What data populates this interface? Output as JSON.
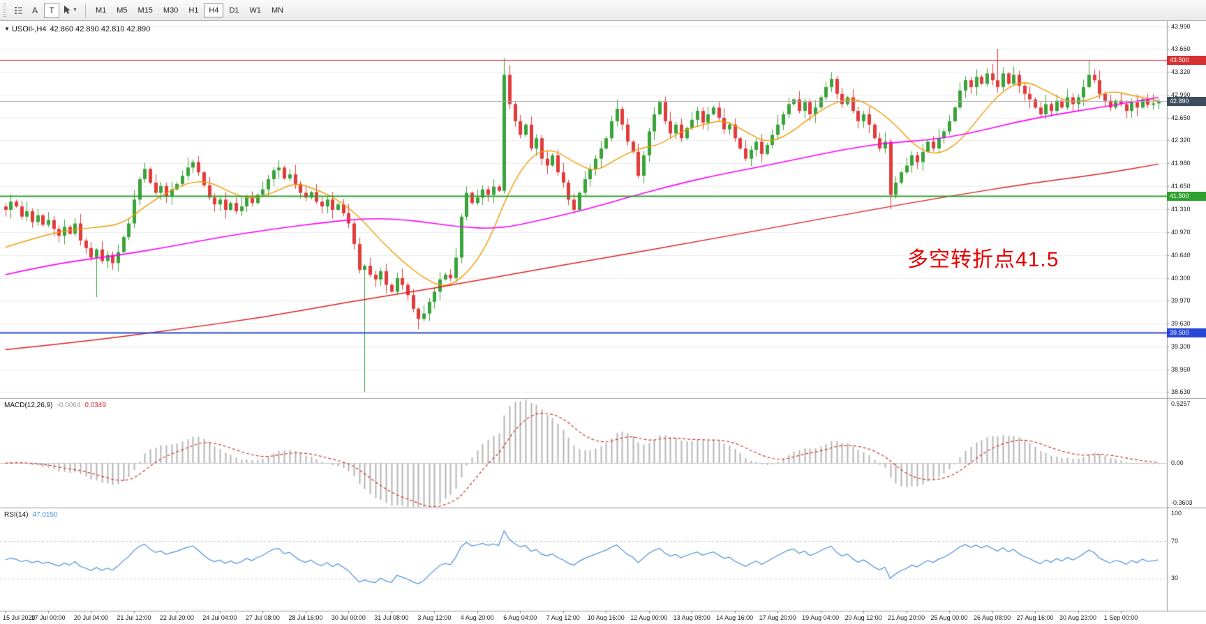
{
  "ui": {
    "toolbar": {
      "a_label": "A",
      "t_label": "T",
      "timeframes": [
        "M1",
        "M5",
        "M15",
        "M30",
        "H1",
        "H4",
        "D1",
        "W1",
        "MN"
      ],
      "active_timeframe": "H4"
    },
    "chart_title": {
      "symbol": "USOil-,H4",
      "ohlc": "42.860 42.890 42.810 42.890"
    }
  },
  "chart_data": {
    "type": "candlestick",
    "symbol": "USOil",
    "timeframe": "H4",
    "ohlc_current": {
      "open": 42.86,
      "high": 42.89,
      "low": 42.81,
      "close": 42.89
    },
    "ylim": [
      38.55,
      44.07
    ],
    "up_color": "#3aa33a",
    "down_color": "#e23b3b",
    "grid_color": "#ececec",
    "price_gridlines": [
      "43.990",
      "43.660",
      "43.320",
      "42.990",
      "42.650",
      "42.320",
      "41.980",
      "41.650",
      "41.310",
      "40.970",
      "40.640",
      "40.300",
      "39.970",
      "39.630",
      "39.300",
      "38.960",
      "38.630"
    ],
    "levels": [
      {
        "value": 43.5,
        "label": "43.500",
        "line_color": "#d83030",
        "tag_bg": "#d83030",
        "line_width": 1
      },
      {
        "value": 42.89,
        "label": "42.890",
        "line_color": "#a8a8a8",
        "tag_bg": "#3e4e5e",
        "line_width": 1
      },
      {
        "value": 41.5,
        "label": "41.500",
        "line_color": "#2fa12f",
        "tag_bg": "#2fa12f",
        "line_width": 2
      },
      {
        "value": 39.5,
        "label": "39.500",
        "line_color": "#2848d8",
        "tag_bg": "#2848d8",
        "line_width": 2
      }
    ],
    "annotation": {
      "text": "多空转折点41.5",
      "color": "#e60000"
    },
    "first_open": 41.35,
    "closes": [
      41.3,
      41.42,
      41.35,
      41.2,
      41.28,
      41.12,
      41.22,
      41.08,
      41.15,
      41.02,
      40.92,
      41.05,
      40.95,
      41.1,
      40.85,
      40.74,
      40.6,
      40.72,
      40.55,
      40.64,
      40.52,
      40.68,
      40.9,
      41.1,
      41.45,
      41.75,
      41.9,
      41.7,
      41.55,
      41.65,
      41.5,
      41.6,
      41.68,
      41.8,
      41.92,
      42.0,
      41.85,
      41.66,
      41.48,
      41.38,
      41.45,
      41.3,
      41.4,
      41.28,
      41.35,
      41.48,
      41.4,
      41.52,
      41.6,
      41.75,
      41.88,
      41.92,
      41.76,
      41.82,
      41.68,
      41.55,
      41.48,
      41.56,
      41.42,
      41.35,
      41.45,
      41.3,
      41.38,
      41.25,
      41.1,
      40.8,
      40.42,
      40.48,
      40.35,
      40.28,
      40.4,
      40.2,
      40.1,
      40.3,
      40.2,
      40.05,
      39.85,
      39.7,
      39.78,
      39.95,
      40.1,
      40.28,
      40.35,
      40.3,
      40.6,
      41.2,
      41.55,
      41.4,
      41.48,
      41.6,
      41.52,
      41.64,
      41.58,
      43.28,
      42.85,
      42.6,
      42.4,
      42.55,
      42.2,
      42.35,
      42.05,
      41.95,
      42.1,
      41.85,
      41.7,
      41.45,
      41.3,
      41.55,
      41.75,
      41.9,
      42.05,
      42.2,
      42.35,
      42.6,
      42.78,
      42.55,
      42.3,
      42.15,
      41.8,
      42.1,
      42.45,
      42.7,
      42.88,
      42.6,
      42.42,
      42.55,
      42.35,
      42.5,
      42.62,
      42.75,
      42.58,
      42.7,
      42.8,
      42.65,
      42.48,
      42.55,
      42.35,
      42.2,
      42.05,
      42.18,
      42.3,
      42.12,
      42.25,
      42.4,
      42.55,
      42.7,
      42.85,
      42.92,
      42.75,
      42.88,
      42.7,
      42.8,
      42.95,
      43.1,
      43.22,
      43.0,
      42.85,
      42.95,
      42.75,
      42.6,
      42.7,
      42.55,
      42.35,
      42.2,
      42.3,
      41.52,
      41.7,
      41.85,
      41.95,
      42.1,
      42.0,
      42.15,
      42.3,
      42.2,
      42.35,
      42.45,
      42.6,
      42.8,
      43.05,
      43.2,
      43.1,
      43.25,
      43.15,
      43.3,
      43.2,
      43.1,
      43.3,
      43.15,
      43.28,
      43.12,
      43.0,
      42.92,
      42.8,
      42.7,
      42.85,
      42.75,
      42.9,
      42.8,
      42.95,
      42.85,
      42.95,
      43.1,
      43.28,
      43.2,
      43.0,
      42.9,
      42.8,
      42.9,
      42.85,
      42.75,
      42.88,
      42.8,
      42.92,
      42.84,
      42.86,
      42.89
    ],
    "wick_pattern": [
      0.05,
      0.11,
      0.03,
      0.08,
      0.14,
      0.04,
      0.09,
      0.02,
      0.12,
      0.06
    ],
    "wick_overrides": [
      {
        "i": 17,
        "low": 40.02
      },
      {
        "i": 67,
        "low": 38.63
      },
      {
        "i": 77,
        "low": 39.55
      },
      {
        "i": 93,
        "high": 43.52
      },
      {
        "i": 154,
        "high": 43.32
      },
      {
        "i": 165,
        "low": 41.31
      },
      {
        "i": 185,
        "high": 43.66
      },
      {
        "i": 202,
        "high": 43.5
      }
    ],
    "ma_lines": [
      {
        "name": "ma-fast-orange",
        "color": "#f59a00",
        "width": 1.4,
        "points": [
          [
            0,
            40.75
          ],
          [
            8,
            40.95
          ],
          [
            14,
            41.02
          ],
          [
            18,
            41.05
          ],
          [
            22,
            41.1
          ],
          [
            26,
            41.35
          ],
          [
            30,
            41.55
          ],
          [
            34,
            41.7
          ],
          [
            38,
            41.72
          ],
          [
            42,
            41.55
          ],
          [
            46,
            41.45
          ],
          [
            50,
            41.55
          ],
          [
            54,
            41.7
          ],
          [
            58,
            41.6
          ],
          [
            62,
            41.45
          ],
          [
            66,
            41.2
          ],
          [
            70,
            40.85
          ],
          [
            74,
            40.55
          ],
          [
            78,
            40.3
          ],
          [
            82,
            40.15
          ],
          [
            86,
            40.35
          ],
          [
            90,
            40.8
          ],
          [
            94,
            41.6
          ],
          [
            98,
            42.1
          ],
          [
            102,
            42.2
          ],
          [
            106,
            42.0
          ],
          [
            110,
            41.85
          ],
          [
            114,
            42.05
          ],
          [
            118,
            42.2
          ],
          [
            122,
            42.25
          ],
          [
            126,
            42.45
          ],
          [
            130,
            42.55
          ],
          [
            134,
            42.62
          ],
          [
            138,
            42.45
          ],
          [
            142,
            42.28
          ],
          [
            146,
            42.4
          ],
          [
            150,
            42.65
          ],
          [
            154,
            42.85
          ],
          [
            158,
            42.95
          ],
          [
            162,
            42.8
          ],
          [
            166,
            42.55
          ],
          [
            170,
            42.2
          ],
          [
            174,
            42.1
          ],
          [
            178,
            42.3
          ],
          [
            182,
            42.7
          ],
          [
            186,
            43.05
          ],
          [
            190,
            43.2
          ],
          [
            194,
            43.05
          ],
          [
            198,
            42.88
          ],
          [
            202,
            42.9
          ],
          [
            206,
            43.05
          ],
          [
            210,
            42.98
          ],
          [
            215,
            42.9
          ]
        ]
      },
      {
        "name": "ma-medium-magenta",
        "color": "#ff00ff",
        "width": 1.6,
        "points": [
          [
            0,
            40.35
          ],
          [
            10,
            40.52
          ],
          [
            20,
            40.62
          ],
          [
            30,
            40.75
          ],
          [
            40,
            40.9
          ],
          [
            50,
            41.02
          ],
          [
            60,
            41.12
          ],
          [
            68,
            41.18
          ],
          [
            76,
            41.15
          ],
          [
            84,
            41.05
          ],
          [
            92,
            41.02
          ],
          [
            100,
            41.15
          ],
          [
            108,
            41.3
          ],
          [
            116,
            41.48
          ],
          [
            124,
            41.65
          ],
          [
            132,
            41.8
          ],
          [
            140,
            41.92
          ],
          [
            148,
            42.05
          ],
          [
            156,
            42.18
          ],
          [
            164,
            42.28
          ],
          [
            172,
            42.32
          ],
          [
            180,
            42.42
          ],
          [
            188,
            42.58
          ],
          [
            196,
            42.7
          ],
          [
            204,
            42.8
          ],
          [
            210,
            42.88
          ],
          [
            215,
            42.95
          ]
        ]
      },
      {
        "name": "ma-slow-red",
        "color": "#e02020",
        "width": 1.4,
        "points": [
          [
            0,
            39.25
          ],
          [
            16,
            39.38
          ],
          [
            32,
            39.55
          ],
          [
            48,
            39.72
          ],
          [
            64,
            39.95
          ],
          [
            80,
            40.15
          ],
          [
            96,
            40.38
          ],
          [
            112,
            40.6
          ],
          [
            128,
            40.82
          ],
          [
            144,
            41.05
          ],
          [
            160,
            41.28
          ],
          [
            176,
            41.5
          ],
          [
            192,
            41.7
          ],
          [
            204,
            41.82
          ],
          [
            215,
            41.97
          ]
        ]
      }
    ],
    "time_labels": [
      "15 Jul 2020",
      "17 Jul 00:00",
      "20 Jul 04:00",
      "21 Jul 12:00",
      "22 Jul 20:00",
      "24 Jul 04:00",
      "27 Jul 08:00",
      "28 Jul 16:00",
      "30 Jul 00:00",
      "31 Jul 08:00",
      "3 Aug 12:00",
      "4 Aug 20:00",
      "6 Aug 04:00",
      "7 Aug 12:00",
      "10 Aug 16:00",
      "12 Aug 00:00",
      "13 Aug 08:00",
      "14 Aug 16:00",
      "17 Aug 20:00",
      "19 Aug 04:00",
      "20 Aug 12:00",
      "21 Aug 20:00",
      "25 Aug 00:00",
      "26 Aug 08:00",
      "27 Aug 16:00",
      "30 Aug 23:00",
      "1 Sep 00:00"
    ],
    "bars_per_label": 8,
    "indicators": [
      {
        "name": "MACD",
        "label": "MACD(12,26,9)",
        "params": [
          12,
          26,
          9
        ],
        "values_text": [
          "-0.0064",
          "0.0349"
        ],
        "axis_labels": [
          "0.5257",
          "0.00",
          "-0.3603"
        ],
        "ylim": [
          -0.3603,
          0.5257
        ],
        "hist_color": "#b4b4b4",
        "signal_color": "#d23030",
        "zero_line_color": "#c8c8c8"
      },
      {
        "name": "RSI",
        "label": "RSI(14)",
        "params": [
          14
        ],
        "value_text": "47.0150",
        "axis_labels": [
          "100",
          "70",
          "30"
        ],
        "level_lines": [
          70,
          30
        ],
        "ylim": [
          -5,
          105
        ],
        "line_color": "#4a8fdd",
        "level_color": "#c8c8c8"
      }
    ]
  }
}
